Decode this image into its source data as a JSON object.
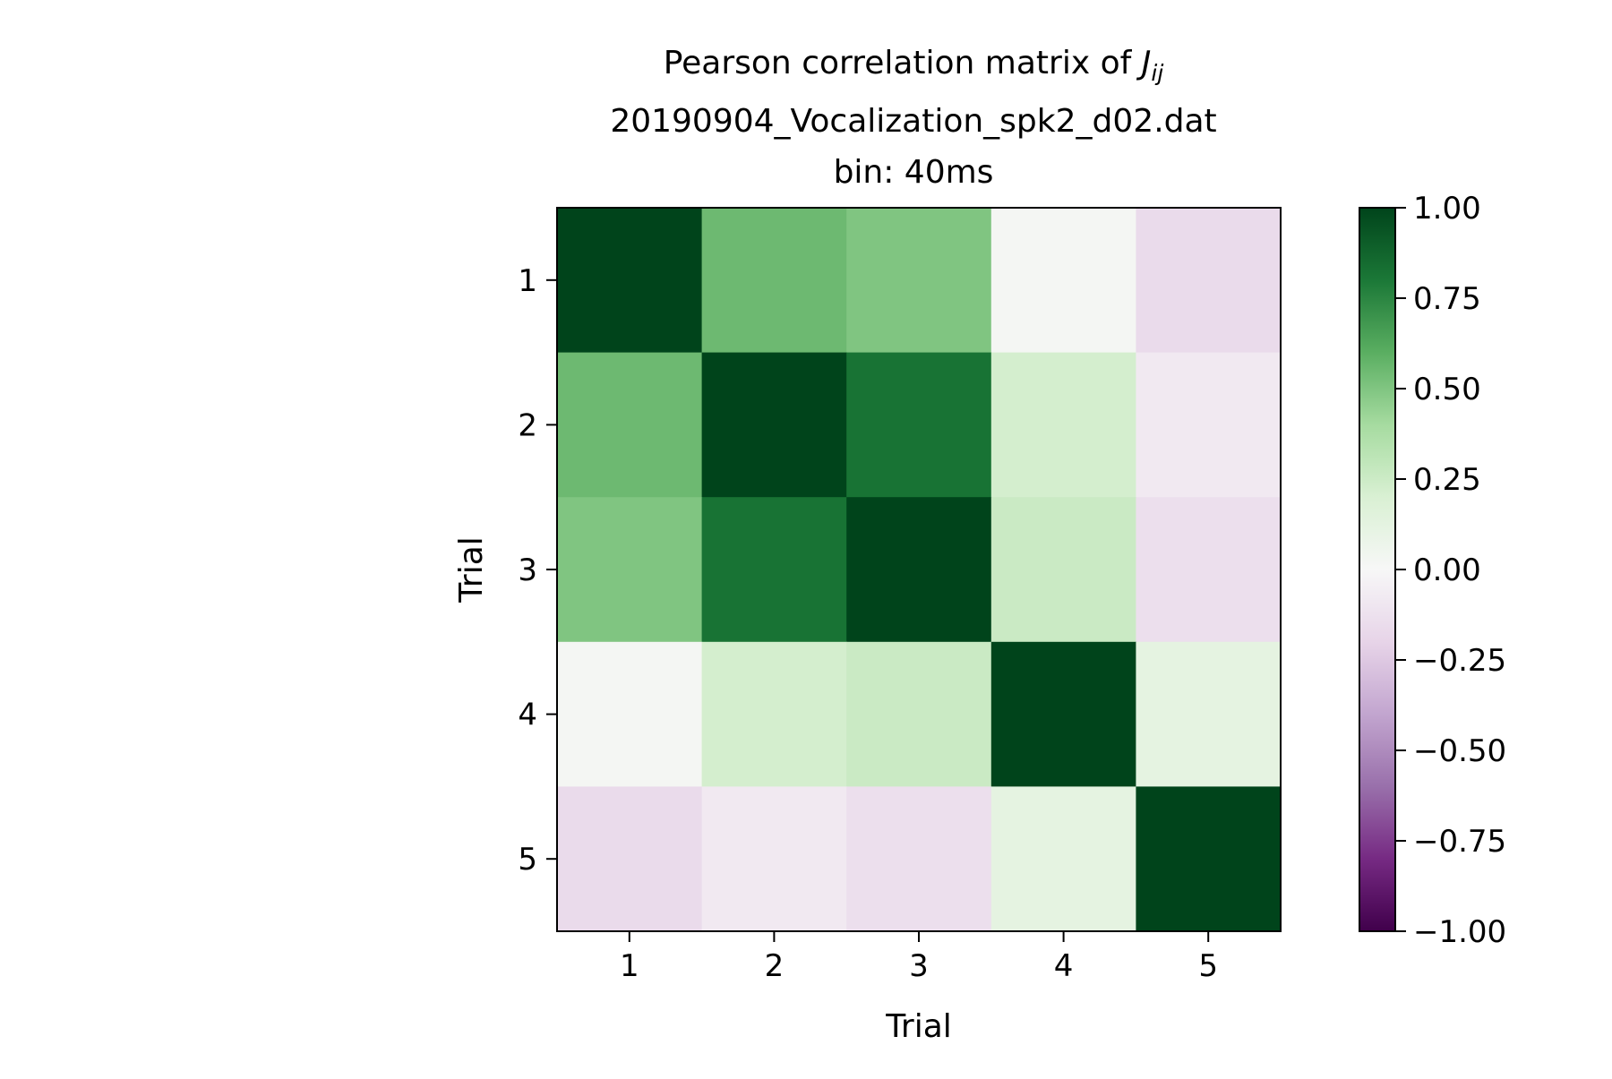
{
  "chart_data": {
    "type": "heatmap",
    "title_line1": "Pearson correlation matrix of ",
    "title_symbol": "J",
    "title_subscript": "ij",
    "title_line2": "20190904_Vocalization_spk2_d02.dat",
    "title_line3": "bin: 40ms",
    "xlabel": "Trial",
    "ylabel": "Trial",
    "x_categories": [
      "1",
      "2",
      "3",
      "4",
      "5"
    ],
    "y_categories": [
      "1",
      "2",
      "3",
      "4",
      "5"
    ],
    "matrix": [
      [
        1.0,
        0.55,
        0.5,
        0.02,
        -0.16
      ],
      [
        0.55,
        1.0,
        0.82,
        0.22,
        -0.08
      ],
      [
        0.5,
        0.82,
        1.0,
        0.26,
        -0.14
      ],
      [
        0.02,
        0.22,
        0.26,
        1.0,
        0.12
      ],
      [
        -0.16,
        -0.08,
        -0.14,
        0.12,
        1.0
      ]
    ],
    "colormap": "PRGn",
    "vmin": -1.0,
    "vmax": 1.0,
    "colorbar_ticks": [
      1.0,
      0.75,
      0.5,
      0.25,
      0.0,
      -0.25,
      -0.5,
      -0.75,
      -1.0
    ],
    "colorbar_tick_labels": [
      "1.00",
      "0.75",
      "0.50",
      "0.25",
      "0.00",
      "−0.25",
      "−0.50",
      "−0.75",
      "−1.00"
    ],
    "grid": false
  }
}
